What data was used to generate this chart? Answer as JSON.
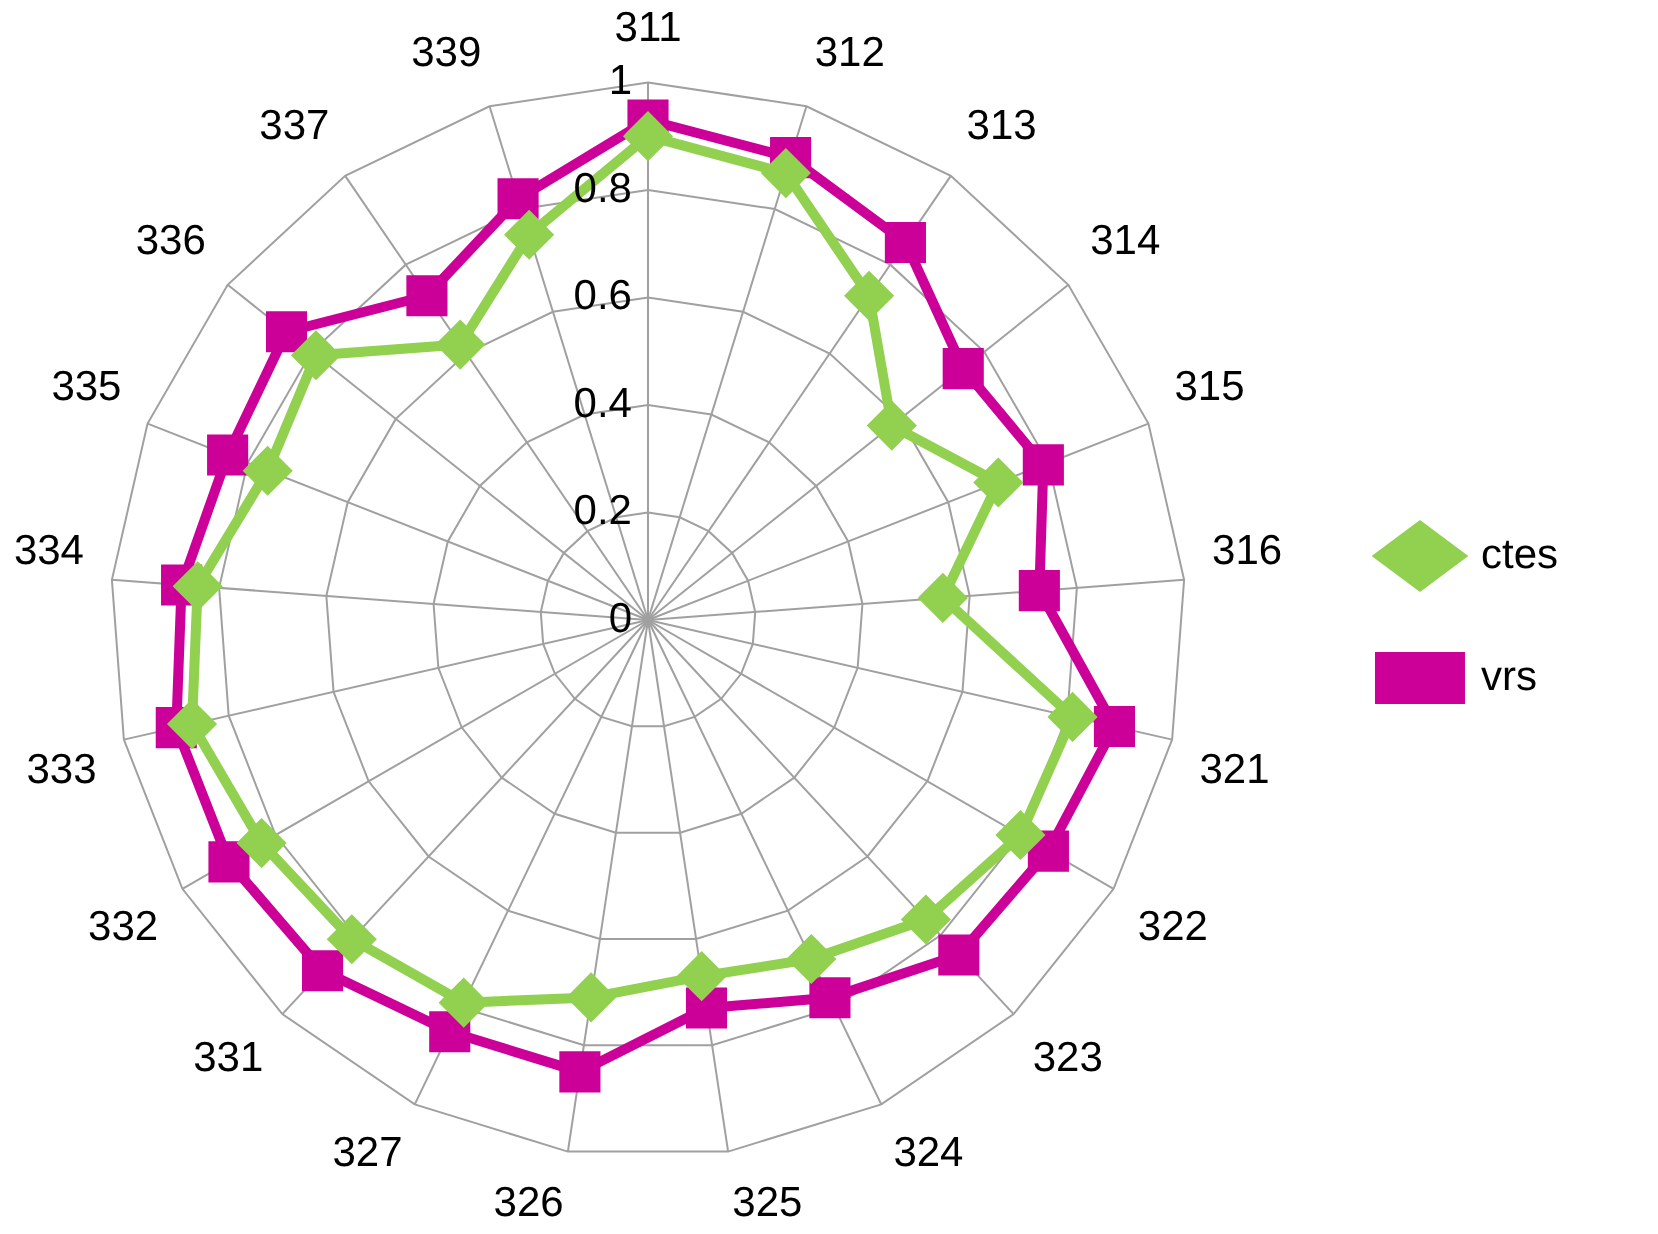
{
  "chart_data": {
    "type": "radar",
    "categories": [
      "311",
      "312",
      "313",
      "314",
      "315",
      "316",
      "321",
      "322",
      "323",
      "324",
      "325",
      "326",
      "327",
      "331",
      "332",
      "333",
      "334",
      "335",
      "336",
      "337",
      "339"
    ],
    "series": [
      {
        "name": "ctes",
        "color": "#92d050",
        "marker": "diamond",
        "values": [
          0.9,
          0.87,
          0.73,
          0.58,
          0.7,
          0.55,
          0.81,
          0.8,
          0.76,
          0.7,
          0.67,
          0.71,
          0.79,
          0.81,
          0.83,
          0.87,
          0.84,
          0.76,
          0.79,
          0.62,
          0.75
        ]
      },
      {
        "name": "vrs",
        "color": "#cc0099",
        "marker": "square",
        "values": [
          0.93,
          0.9,
          0.85,
          0.75,
          0.79,
          0.73,
          0.89,
          0.86,
          0.85,
          0.78,
          0.73,
          0.85,
          0.85,
          0.89,
          0.9,
          0.9,
          0.87,
          0.84,
          0.86,
          0.73,
          0.82
        ]
      }
    ],
    "ylim": [
      0,
      1
    ],
    "yticks": [
      0,
      0.2,
      0.4,
      0.6,
      0.8,
      1
    ],
    "grid": true,
    "legend": "right"
  }
}
